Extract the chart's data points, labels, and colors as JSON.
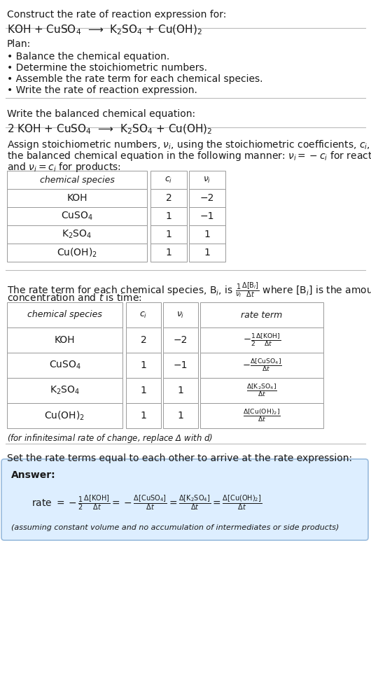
{
  "title_line1": "Construct the rate of reaction expression for:",
  "title_line2": "KOH + CuSO$_4$  ⟶  K$_2$SO$_4$ + Cu(OH)$_2$",
  "plan_header": "Plan:",
  "plan_items": [
    "• Balance the chemical equation.",
    "• Determine the stoichiometric numbers.",
    "• Assemble the rate term for each chemical species.",
    "• Write the rate of reaction expression."
  ],
  "balanced_header": "Write the balanced chemical equation:",
  "balanced_eq": "2 KOH + CuSO$_4$  ⟶  K$_2$SO$_4$ + Cu(OH)$_2$",
  "assign_text1": "Assign stoichiometric numbers, $\\nu_i$, using the stoichiometric coefficients, $c_i$, from",
  "assign_text2": "the balanced chemical equation in the following manner: $\\nu_i = -c_i$ for reactants",
  "assign_text3": "and $\\nu_i = c_i$ for products:",
  "table1_headers": [
    "chemical species",
    "$c_i$",
    "$\\nu_i$"
  ],
  "table1_rows": [
    [
      "KOH",
      "2",
      "−2"
    ],
    [
      "CuSO$_4$",
      "1",
      "−1"
    ],
    [
      "K$_2$SO$_4$",
      "1",
      "1"
    ],
    [
      "Cu(OH)$_2$",
      "1",
      "1"
    ]
  ],
  "rate_text1": "The rate term for each chemical species, B$_i$, is $\\frac{1}{\\nu_i}\\frac{\\Delta[\\mathrm{B}_i]}{\\Delta t}$ where [B$_i$] is the amount",
  "rate_text2": "concentration and $t$ is time:",
  "table2_headers": [
    "chemical species",
    "$c_i$",
    "$\\nu_i$",
    "rate term"
  ],
  "table2_rows": [
    [
      "KOH",
      "2",
      "−2",
      "$-\\frac{1}{2}\\frac{\\Delta[\\mathrm{KOH}]}{\\Delta t}$"
    ],
    [
      "CuSO$_4$",
      "1",
      "−1",
      "$-\\frac{\\Delta[\\mathrm{CuSO_4}]}{\\Delta t}$"
    ],
    [
      "K$_2$SO$_4$",
      "1",
      "1",
      "$\\frac{\\Delta[\\mathrm{K_2SO_4}]}{\\Delta t}$"
    ],
    [
      "Cu(OH)$_2$",
      "1",
      "1",
      "$\\frac{\\Delta[\\mathrm{Cu(OH)_2}]}{\\Delta t}$"
    ]
  ],
  "infinitesimal_note": "(for infinitesimal rate of change, replace Δ with $d$)",
  "set_equal_text": "Set the rate terms equal to each other to arrive at the rate expression:",
  "answer_label": "Answer:",
  "answer_box_color": "#ddeeff",
  "answer_box_border": "#99bbdd",
  "rate_expression_parts": [
    "rate $= -\\frac{1}{2}\\frac{\\Delta[\\mathrm{KOH}]}{\\Delta t} = -\\frac{\\Delta[\\mathrm{CuSO_4}]}{\\Delta t} = \\frac{\\Delta[\\mathrm{K_2SO_4}]}{\\Delta t} = \\frac{\\Delta[\\mathrm{Cu(OH)_2}]}{\\Delta t}$"
  ],
  "assuming_note": "(assuming constant volume and no accumulation of intermediates or side products)",
  "bg_color": "#ffffff",
  "text_color": "#1a1a1a",
  "table_border_color": "#999999",
  "separator_color": "#bbbbbb",
  "font_size": 10,
  "small_font_size": 9,
  "title_font_size": 10,
  "eq_font_size": 11
}
